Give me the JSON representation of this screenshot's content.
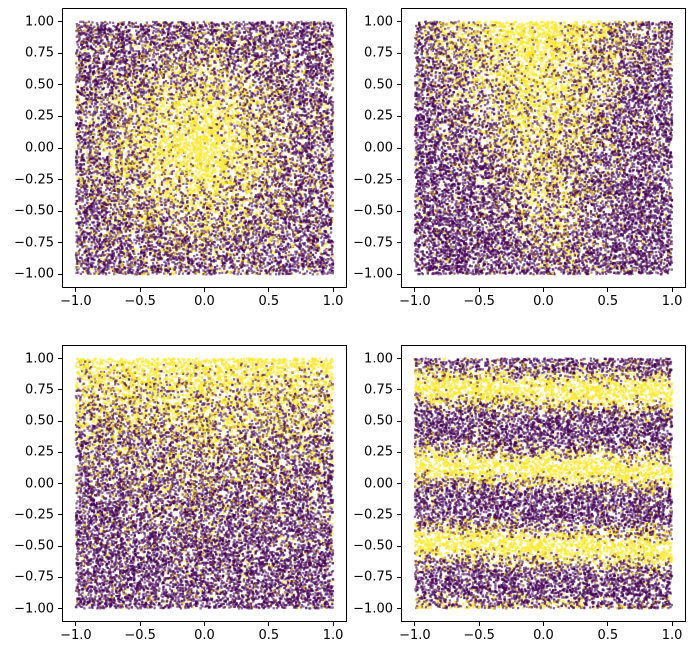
{
  "figure": {
    "background": "#ffffff",
    "description": "2x2 grid of dense two-class scatter plots, viridis binary coloring"
  },
  "chart_data": [
    {
      "id": "top-left",
      "type": "scatter",
      "title": "",
      "xlabel": "",
      "ylabel": "",
      "xlim": [
        -1.1,
        1.1
      ],
      "ylim": [
        -1.1,
        1.1
      ],
      "grid": false,
      "legend": null,
      "x_ticks": [
        {
          "v": -1.0,
          "label": "−1.0"
        },
        {
          "v": -0.5,
          "label": "−0.5"
        },
        {
          "v": 0.0,
          "label": "0.0"
        },
        {
          "v": 0.5,
          "label": "0.5"
        },
        {
          "v": 1.0,
          "label": "1.0"
        }
      ],
      "y_ticks": [
        {
          "v": 1.0,
          "label": "1.00"
        },
        {
          "v": 0.75,
          "label": "0.75"
        },
        {
          "v": 0.5,
          "label": "0.50"
        },
        {
          "v": 0.25,
          "label": "0.25"
        },
        {
          "v": 0.0,
          "label": "0.00"
        },
        {
          "v": -0.25,
          "label": "−0.25"
        },
        {
          "v": -0.5,
          "label": "−0.50"
        },
        {
          "v": -0.75,
          "label": "−0.75"
        },
        {
          "v": -1.0,
          "label": "−1.00"
        }
      ],
      "n_points": 16500,
      "point_size": 2.3,
      "alpha": 0.6,
      "colors": {
        "class_negative": "#440154",
        "class_positive": "#fde725"
      },
      "domain": {
        "x": [
          -1,
          1
        ],
        "y": [
          -1,
          1
        ]
      },
      "pattern": {
        "kind": "radial-blob",
        "center_x": -0.05,
        "center_y": 0.0,
        "sigma": 0.42,
        "baseline": 0.12
      },
      "seed": 11
    },
    {
      "id": "top-right",
      "type": "scatter",
      "title": "",
      "xlabel": "",
      "ylabel": "",
      "xlim": [
        -1.1,
        1.1
      ],
      "ylim": [
        -1.1,
        1.1
      ],
      "grid": false,
      "legend": null,
      "x_ticks": [
        {
          "v": -1.0,
          "label": "−1.0"
        },
        {
          "v": -0.5,
          "label": "−0.5"
        },
        {
          "v": 0.0,
          "label": "0.0"
        },
        {
          "v": 0.5,
          "label": "0.5"
        },
        {
          "v": 1.0,
          "label": "1.0"
        }
      ],
      "y_ticks": [
        {
          "v": 1.0,
          "label": "1.00"
        },
        {
          "v": 0.75,
          "label": "0.75"
        },
        {
          "v": 0.5,
          "label": "0.50"
        },
        {
          "v": 0.25,
          "label": "0.25"
        },
        {
          "v": 0.0,
          "label": "0.00"
        },
        {
          "v": -0.25,
          "label": "−0.25"
        },
        {
          "v": -0.5,
          "label": "−0.50"
        },
        {
          "v": -0.75,
          "label": "−0.75"
        },
        {
          "v": -1.0,
          "label": "−1.00"
        }
      ],
      "n_points": 16500,
      "point_size": 2.3,
      "alpha": 0.6,
      "colors": {
        "class_negative": "#440154",
        "class_positive": "#fde725"
      },
      "domain": {
        "x": [
          -1,
          1
        ],
        "y": [
          -1,
          1
        ]
      },
      "pattern": {
        "kind": "funnel",
        "x_drift": -0.1,
        "sigma_min": 0.13,
        "sigma_max": 0.5,
        "gain_min": 0.22,
        "baseline": 0.07
      },
      "seed": 22
    },
    {
      "id": "bottom-left",
      "type": "scatter",
      "title": "",
      "xlabel": "",
      "ylabel": "",
      "xlim": [
        -1.1,
        1.1
      ],
      "ylim": [
        -1.1,
        1.1
      ],
      "grid": false,
      "legend": null,
      "x_ticks": [
        {
          "v": -1.0,
          "label": "−1.0"
        },
        {
          "v": -0.5,
          "label": "−0.5"
        },
        {
          "v": 0.0,
          "label": "0.0"
        },
        {
          "v": 0.5,
          "label": "0.5"
        },
        {
          "v": 1.0,
          "label": "1.0"
        }
      ],
      "y_ticks": [
        {
          "v": 1.0,
          "label": "1.00"
        },
        {
          "v": 0.75,
          "label": "0.75"
        },
        {
          "v": 0.5,
          "label": "0.50"
        },
        {
          "v": 0.25,
          "label": "0.25"
        },
        {
          "v": 0.0,
          "label": "0.00"
        },
        {
          "v": -0.25,
          "label": "−0.25"
        },
        {
          "v": -0.5,
          "label": "−0.50"
        },
        {
          "v": -0.75,
          "label": "−0.75"
        },
        {
          "v": -1.0,
          "label": "−1.00"
        }
      ],
      "n_points": 16500,
      "point_size": 2.3,
      "alpha": 0.6,
      "colors": {
        "class_negative": "#440154",
        "class_positive": "#fde725"
      },
      "domain": {
        "x": [
          -1,
          1
        ],
        "y": [
          -1,
          1
        ]
      },
      "pattern": {
        "kind": "vertical-gradient",
        "baseline": 0.06,
        "exp_base": 1.9,
        "exp_x": 1.3
      },
      "seed": 33
    },
    {
      "id": "bottom-right",
      "type": "scatter",
      "title": "",
      "xlabel": "",
      "ylabel": "",
      "xlim": [
        -1.1,
        1.1
      ],
      "ylim": [
        -1.1,
        1.1
      ],
      "grid": false,
      "legend": null,
      "x_ticks": [
        {
          "v": -1.0,
          "label": "−1.0"
        },
        {
          "v": -0.5,
          "label": "−0.5"
        },
        {
          "v": 0.0,
          "label": "0.0"
        },
        {
          "v": 0.5,
          "label": "0.5"
        },
        {
          "v": 1.0,
          "label": "1.0"
        }
      ],
      "y_ticks": [
        {
          "v": 1.0,
          "label": "1.00"
        },
        {
          "v": 0.75,
          "label": "0.75"
        },
        {
          "v": 0.5,
          "label": "0.50"
        },
        {
          "v": 0.25,
          "label": "0.25"
        },
        {
          "v": 0.0,
          "label": "0.00"
        },
        {
          "v": -0.25,
          "label": "−0.25"
        },
        {
          "v": -0.5,
          "label": "−0.50"
        },
        {
          "v": -0.75,
          "label": "−0.75"
        },
        {
          "v": -1.0,
          "label": "−1.00"
        }
      ],
      "n_points": 16500,
      "point_size": 2.3,
      "alpha": 0.6,
      "colors": {
        "class_negative": "#440154",
        "class_positive": "#fde725"
      },
      "domain": {
        "x": [
          -1,
          1
        ],
        "y": [
          -1,
          1
        ]
      },
      "pattern": {
        "kind": "horizontal-bands",
        "period": 0.625,
        "phase_center": 0.75,
        "tilt": 0.03,
        "sharpness": 1.7,
        "baseline": 0.04
      },
      "seed": 44
    }
  ]
}
